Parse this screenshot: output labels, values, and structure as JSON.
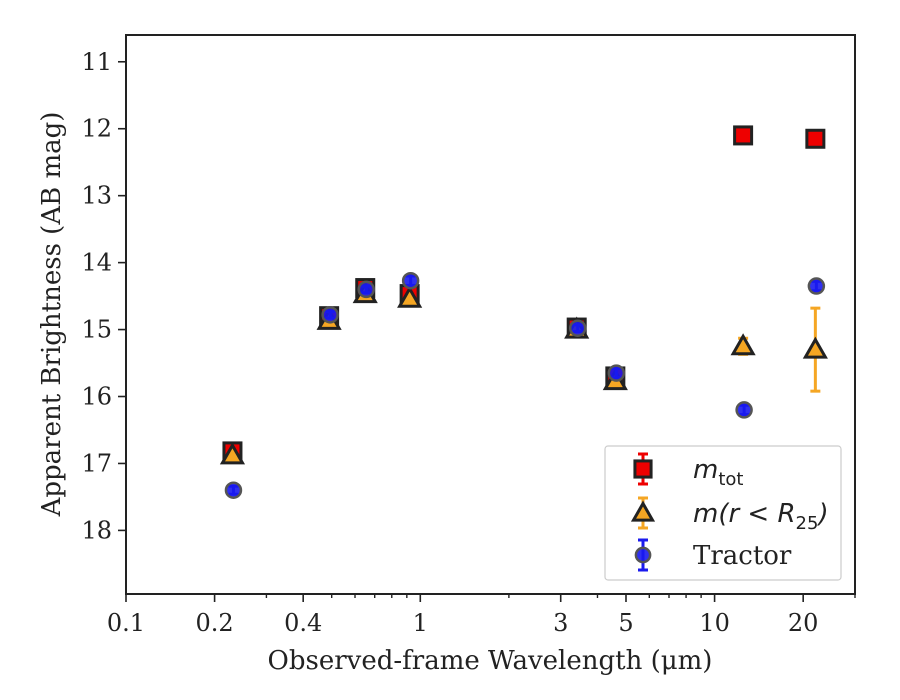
{
  "chart_data": {
    "type": "scatter",
    "xlabel": "Observed-frame Wavelength (μm)",
    "ylabel": "Apparent Brightness (AB mag)",
    "x_scale": "log",
    "xlim": [
      0.1,
      30
    ],
    "ylim": [
      18.95,
      10.6
    ],
    "y_inverted": true,
    "x_ticks": [
      0.1,
      0.2,
      0.4,
      1,
      3,
      5,
      10,
      20
    ],
    "x_tick_labels": [
      "0.1",
      "0.2",
      "0.4",
      "1",
      "3",
      "5",
      "10",
      "20"
    ],
    "y_ticks": [
      11,
      12,
      13,
      14,
      15,
      16,
      17,
      18
    ],
    "y_tick_labels": [
      "11",
      "12",
      "13",
      "14",
      "15",
      "16",
      "17",
      "18"
    ],
    "grid": false,
    "legend_position": "lower-right",
    "series": [
      {
        "name": "m_tot",
        "label_main": "m",
        "label_sub": "tot",
        "marker": "square",
        "color": "#ee0000",
        "points": [
          {
            "x": 0.23,
            "y": 16.82,
            "err": 0.05
          },
          {
            "x": 0.49,
            "y": 14.8,
            "err": 0.04
          },
          {
            "x": 0.65,
            "y": 14.38,
            "err": 0.04
          },
          {
            "x": 0.92,
            "y": 14.47,
            "err": 0.05
          },
          {
            "x": 3.4,
            "y": 14.97,
            "err": 0.04
          },
          {
            "x": 4.6,
            "y": 15.7,
            "err": 0.04
          },
          {
            "x": 12.5,
            "y": 12.1,
            "err": 0.04
          },
          {
            "x": 22.0,
            "y": 12.15,
            "err": 0.04
          }
        ]
      },
      {
        "name": "m(r < R_25)",
        "label_main": "m(r < R",
        "label_sub": "25",
        "label_end": ")",
        "marker": "triangle",
        "color": "#f5a623",
        "points": [
          {
            "x": 0.23,
            "y": 16.88,
            "err": 0.04
          },
          {
            "x": 0.49,
            "y": 14.87,
            "err": 0.04
          },
          {
            "x": 0.65,
            "y": 14.47,
            "err": 0.04
          },
          {
            "x": 0.92,
            "y": 14.54,
            "err": 0.04
          },
          {
            "x": 3.4,
            "y": 15.0,
            "err": 0.03
          },
          {
            "x": 4.6,
            "y": 15.77,
            "err": 0.04
          },
          {
            "x": 12.5,
            "y": 15.25,
            "err": 0.12
          },
          {
            "x": 22.0,
            "y": 15.3,
            "err": 0.62
          }
        ]
      },
      {
        "name": "Tractor",
        "marker": "circle",
        "color": "#1a1aee",
        "points": [
          {
            "x": 0.23,
            "y": 17.4,
            "err": 0.06
          },
          {
            "x": 0.49,
            "y": 14.78,
            "err": 0.05
          },
          {
            "x": 0.65,
            "y": 14.4,
            "err": 0.05
          },
          {
            "x": 0.92,
            "y": 14.27,
            "err": 0.07
          },
          {
            "x": 3.4,
            "y": 14.98,
            "err": 0.05
          },
          {
            "x": 4.6,
            "y": 15.65,
            "err": 0.07
          },
          {
            "x": 12.5,
            "y": 16.2,
            "err": 0.07
          },
          {
            "x": 22.0,
            "y": 14.35,
            "err": 0.07
          }
        ]
      }
    ]
  }
}
